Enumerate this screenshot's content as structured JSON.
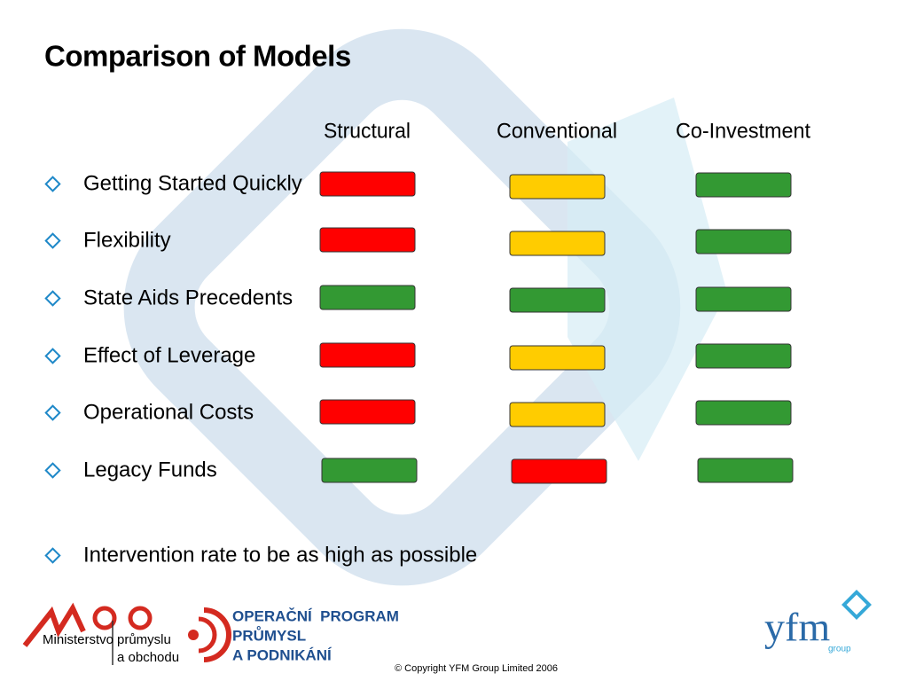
{
  "title": "Comparison of Models",
  "columns": [
    "Structural",
    "Conventional",
    "Co-Investment"
  ],
  "ratings": {
    "red": "#ff0000",
    "yellow": "#ffcc00",
    "green": "#339933"
  },
  "rows": [
    {
      "label": "Getting Started Quickly",
      "ratings": [
        "red",
        "yellow",
        "green"
      ]
    },
    {
      "label": "Flexibility",
      "ratings": [
        "red",
        "yellow",
        "green"
      ]
    },
    {
      "label": "State Aids Precedents",
      "ratings": [
        "green",
        "green",
        "green"
      ]
    },
    {
      "label": "Effect of Leverage",
      "ratings": [
        "red",
        "yellow",
        "green"
      ]
    },
    {
      "label": "Operational Costs",
      "ratings": [
        "red",
        "yellow",
        "green"
      ]
    },
    {
      "label": "Legacy Funds",
      "ratings": [
        "green",
        "red",
        "green"
      ]
    }
  ],
  "note": "Intervention rate to be as high as possible",
  "footer": {
    "mpo_name": [
      "Ministerstvo",
      "průmyslu",
      "a obchodu"
    ],
    "program": [
      "OPERAČNÍ  PROGRAM",
      "PRŮMYSL",
      "A PODNIKÁNÍ"
    ],
    "copyright": "© Copyright YFM Group Limited 2006",
    "yfm": "yfm",
    "yfm_sub": "group"
  }
}
